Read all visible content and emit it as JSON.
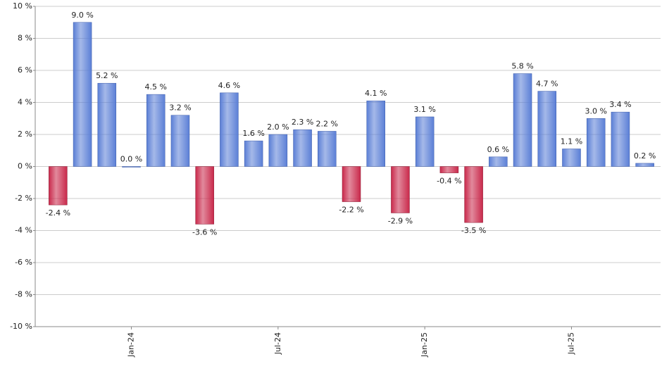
{
  "chart_data": {
    "type": "bar",
    "categories": [
      null,
      null,
      null,
      "Jan-24",
      null,
      null,
      null,
      null,
      null,
      "Jul-24",
      null,
      null,
      null,
      null,
      null,
      "Jan-25",
      null,
      null,
      null,
      null,
      null,
      "Jul-25",
      null,
      null,
      null
    ],
    "values": [
      -2.4,
      9.0,
      5.2,
      0.0,
      4.5,
      3.2,
      -3.6,
      4.6,
      1.6,
      2.0,
      2.3,
      2.2,
      -2.2,
      4.1,
      -2.9,
      3.1,
      -0.4,
      -3.5,
      0.6,
      5.8,
      4.7,
      1.1,
      3.0,
      3.4,
      0.2
    ],
    "value_labels": [
      "-2.4 %",
      "9.0 %",
      "5.2 %",
      "0.0 %",
      "4.5 %",
      "3.2 %",
      "-3.6 %",
      "4.6 %",
      "1.6 %",
      "2.0 %",
      "2.3 %",
      "2.2 %",
      "-2.2 %",
      "4.1 %",
      "-2.9 %",
      "3.1 %",
      "-0.4 %",
      "-3.5 %",
      "0.6 %",
      "5.8 %",
      "4.7 %",
      "1.1 %",
      "3.0 %",
      "3.4 %",
      "0.2 %"
    ],
    "positive_color": "#5b7fd6",
    "negative_color": "#c9294b",
    "ylim": [
      -10,
      10
    ],
    "yticks": [
      {
        "value": -10,
        "label": "-10 %"
      },
      {
        "value": -8,
        "label": "-8 %"
      },
      {
        "value": -6,
        "label": "-6 %"
      },
      {
        "value": -4,
        "label": "-4 %"
      },
      {
        "value": -2,
        "label": "-2 %"
      },
      {
        "value": 0,
        "label": "0 %"
      },
      {
        "value": 2,
        "label": "2 %"
      },
      {
        "value": 4,
        "label": "4 %"
      },
      {
        "value": 6,
        "label": "6 %"
      },
      {
        "value": 8,
        "label": "8 %"
      },
      {
        "value": 10,
        "label": "10 %"
      }
    ],
    "grid": true
  }
}
